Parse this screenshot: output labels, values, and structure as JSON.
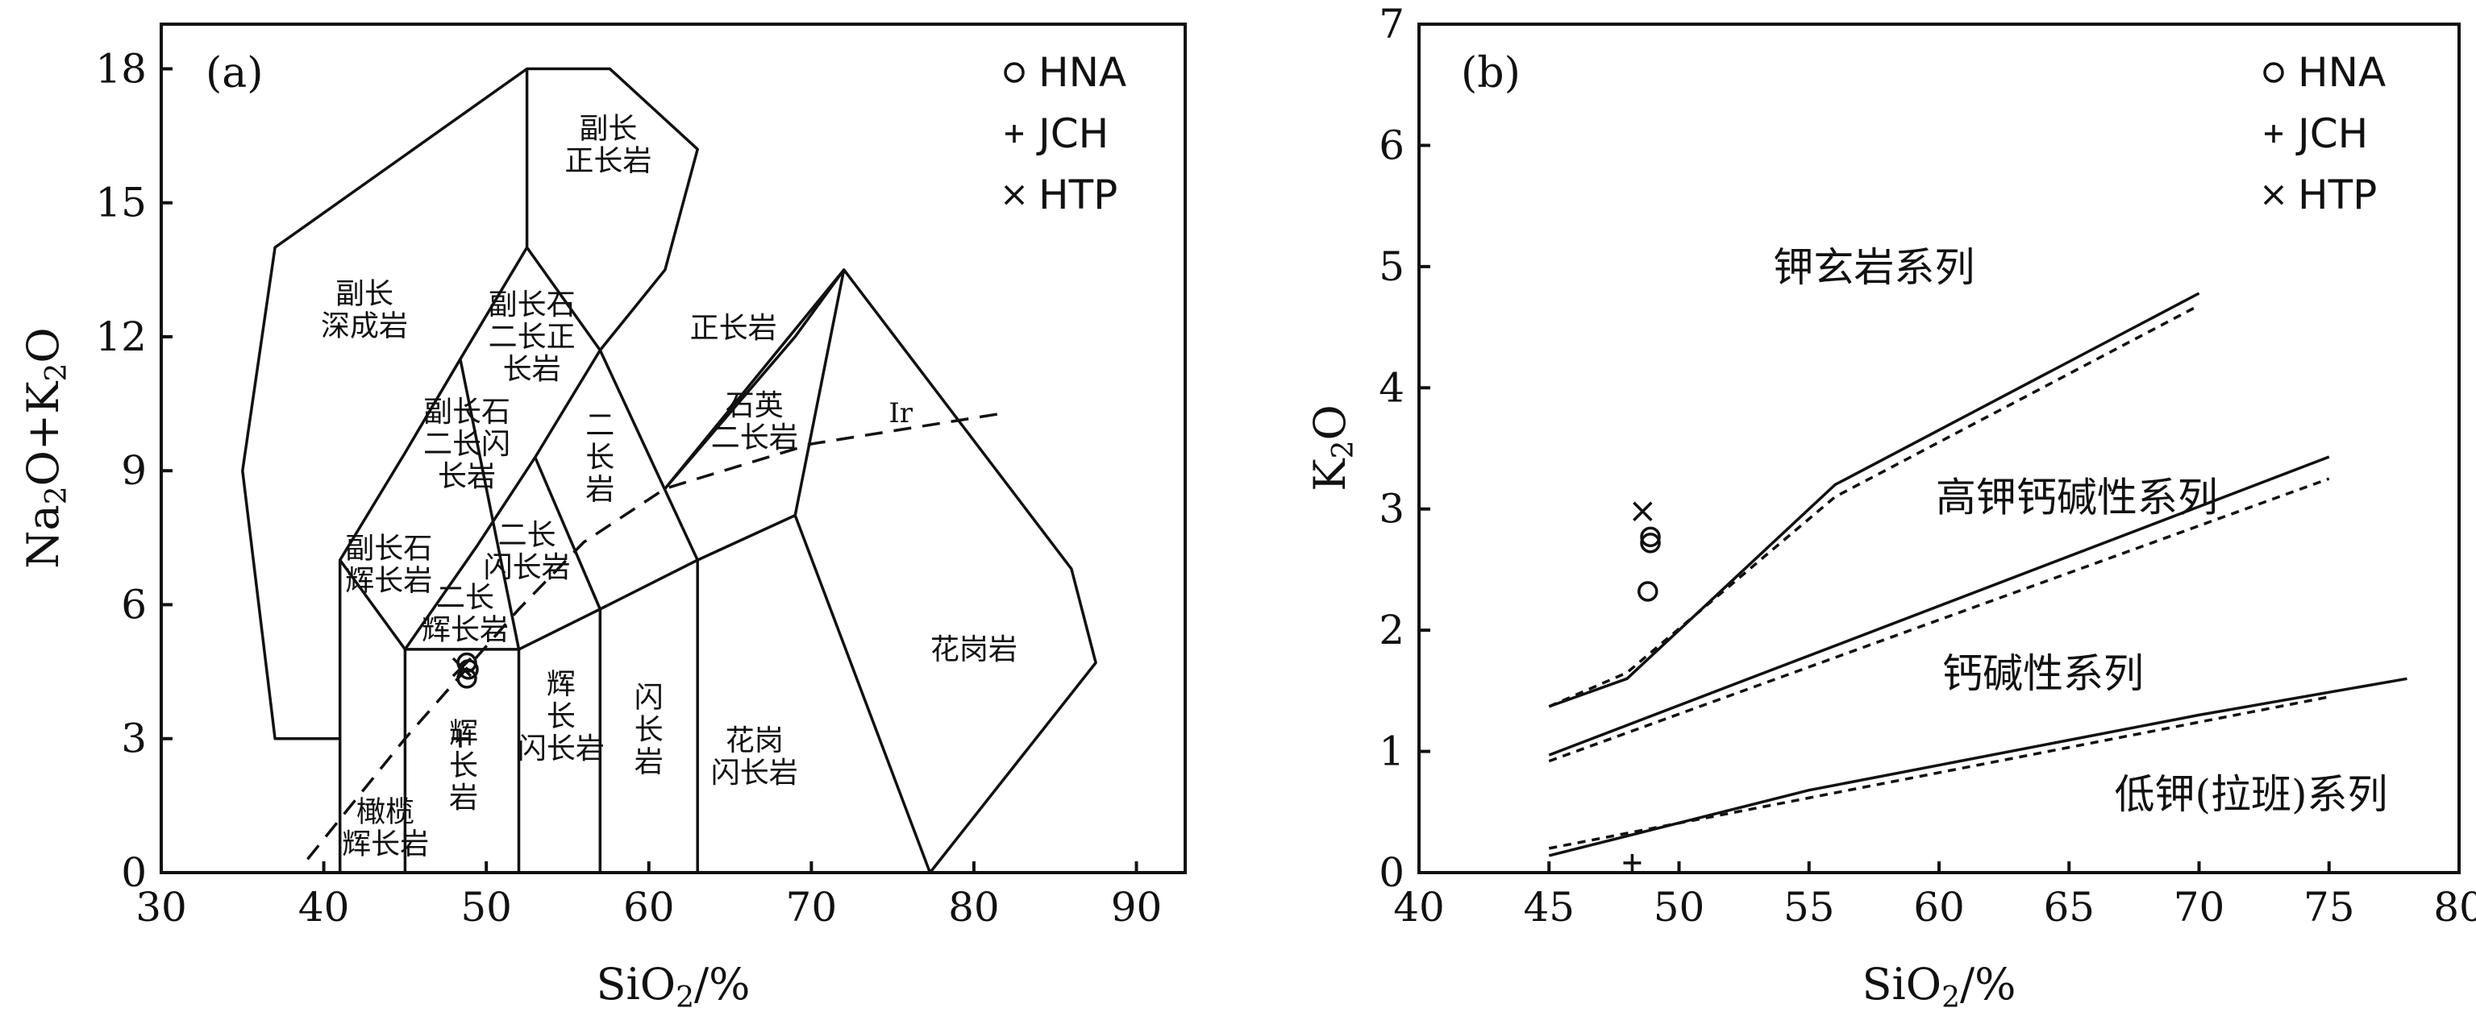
{
  "chart_data": [
    {
      "panel_label": "(a)",
      "type": "scatter",
      "xlabel": "SiO2/%",
      "xlabel_tail": "/%",
      "ylabel": "Na2O+K2O",
      "xlim": [
        30,
        93
      ],
      "ylim": [
        0,
        19
      ],
      "xticks": [
        30,
        40,
        50,
        60,
        70,
        80,
        90
      ],
      "yticks": [
        0,
        3,
        6,
        9,
        12,
        15,
        18
      ],
      "boundaries": [
        [
          [
            41,
            0
          ],
          [
            41,
            7
          ],
          [
            45,
            5
          ],
          [
            52,
            5
          ],
          [
            57,
            5.9
          ],
          [
            63,
            7
          ],
          [
            69,
            8
          ],
          [
            77.3,
            0
          ]
        ],
        [
          [
            45,
            0
          ],
          [
            45,
            5
          ]
        ],
        [
          [
            52,
            0
          ],
          [
            52,
            5
          ]
        ],
        [
          [
            57,
            0
          ],
          [
            57,
            5.9
          ]
        ],
        [
          [
            63,
            0
          ],
          [
            63,
            7
          ]
        ],
        [
          [
            41,
            3
          ],
          [
            37,
            3
          ],
          [
            35,
            9
          ],
          [
            37,
            14
          ],
          [
            52.5,
            18
          ],
          [
            57.6,
            18
          ],
          [
            63,
            16.2
          ],
          [
            61,
            13.5
          ],
          [
            57,
            11.7
          ],
          [
            52.5,
            14
          ],
          [
            52.5,
            18
          ]
        ],
        [
          [
            52.5,
            14
          ],
          [
            48.4,
            11.5
          ],
          [
            45,
            9.4
          ],
          [
            41,
            7
          ]
        ],
        [
          [
            45,
            5
          ],
          [
            49.4,
            7.3
          ],
          [
            53,
            9.3
          ],
          [
            57,
            11.7
          ]
        ],
        [
          [
            48.4,
            11.5
          ],
          [
            52,
            5
          ]
        ],
        [
          [
            53,
            9.3
          ],
          [
            57,
            5.9
          ]
        ],
        [
          [
            57,
            11.7
          ],
          [
            63,
            7
          ]
        ],
        [
          [
            61,
            8.6
          ],
          [
            69,
            12
          ],
          [
            72,
            13.5
          ],
          [
            61,
            8.6
          ]
        ],
        [
          [
            72,
            13.5
          ],
          [
            69,
            8
          ]
        ],
        [
          [
            72,
            13.5
          ],
          [
            86,
            6.8
          ],
          [
            87.5,
            4.7
          ],
          [
            77.3,
            0
          ]
        ]
      ],
      "ir_line": [
        [
          39,
          0.3
        ],
        [
          45,
          3
        ],
        [
          52,
          5.9
        ],
        [
          56,
          7.4
        ],
        [
          61,
          8.6
        ],
        [
          70,
          9.6
        ],
        [
          82,
          10.3
        ]
      ],
      "region_labels": [
        {
          "lines": [
            "副长",
            "正长岩"
          ],
          "x": 57.5,
          "y": 16.3
        },
        {
          "lines": [
            "副长",
            "深成岩"
          ],
          "x": 42.5,
          "y": 12.6
        },
        {
          "lines": [
            "副长石",
            "二长正",
            "长岩"
          ],
          "x": 52.8,
          "y": 12.0
        },
        {
          "lines": [
            "正长岩"
          ],
          "x": 65.2,
          "y": 12.2
        },
        {
          "lines": [
            "副长石",
            "二长闪",
            "长岩"
          ],
          "x": 48.8,
          "y": 9.6
        },
        {
          "lines": [
            "二",
            "长",
            "岩"
          ],
          "x": 57.0,
          "y": 9.3
        },
        {
          "lines": [
            "石英",
            "二长岩"
          ],
          "x": 66.5,
          "y": 10.1
        },
        {
          "lines": [
            "Ir"
          ],
          "x": 75.5,
          "y": 10.3
        },
        {
          "lines": [
            "二长",
            "闪长岩"
          ],
          "x": 52.5,
          "y": 7.2
        },
        {
          "lines": [
            "副长石",
            "辉长岩"
          ],
          "x": 44.0,
          "y": 6.9
        },
        {
          "lines": [
            "二长",
            "辉长岩"
          ],
          "x": 48.7,
          "y": 5.8
        },
        {
          "lines": [
            "辉",
            "长",
            "岩"
          ],
          "x": 48.6,
          "y": 2.4
        },
        {
          "lines": [
            "辉",
            "长",
            "闪长岩"
          ],
          "x": 54.6,
          "y": 3.5
        },
        {
          "lines": [
            "闪",
            "长",
            "岩"
          ],
          "x": 60.0,
          "y": 3.2
        },
        {
          "lines": [
            "花岗",
            "闪长岩"
          ],
          "x": 66.5,
          "y": 2.6
        },
        {
          "lines": [
            "花岗岩"
          ],
          "x": 80.0,
          "y": 5.0
        },
        {
          "lines": [
            "橄榄",
            "辉长岩"
          ],
          "x": 43.8,
          "y": 1.0
        }
      ],
      "series": [
        {
          "name": "HNA",
          "marker": "circle",
          "points": [
            [
              48.8,
              4.7
            ],
            [
              48.9,
              4.55
            ],
            [
              48.8,
              4.35
            ]
          ]
        },
        {
          "name": "JCH",
          "marker": "plus",
          "points": [
            [
              48.4,
              3.0
            ]
          ]
        },
        {
          "name": "HTP",
          "marker": "x",
          "points": [
            [
              48.5,
              4.6
            ]
          ]
        }
      ]
    },
    {
      "panel_label": "(b)",
      "type": "scatter",
      "xlabel": "SiO2/%",
      "xlabel_tail": "/%",
      "ylabel": "K2O",
      "xlim": [
        40,
        80
      ],
      "ylim": [
        0,
        7
      ],
      "xticks": [
        40,
        45,
        50,
        55,
        60,
        65,
        70,
        75,
        80
      ],
      "yticks": [
        0,
        1,
        2,
        3,
        4,
        5,
        6,
        7
      ],
      "solid_lines": [
        [
          [
            45,
            1.37
          ],
          [
            48,
            1.6
          ],
          [
            56,
            3.2
          ],
          [
            70,
            4.78
          ]
        ],
        [
          [
            45,
            0.97
          ],
          [
            75,
            3.43
          ]
        ],
        [
          [
            45,
            0.14
          ],
          [
            55,
            0.68
          ],
          [
            70,
            1.3
          ],
          [
            78,
            1.6
          ]
        ]
      ],
      "dashed_lines": [
        [
          [
            45,
            1.37
          ],
          [
            48,
            1.65
          ],
          [
            56,
            3.1
          ],
          [
            70,
            4.68
          ]
        ],
        [
          [
            45,
            0.92
          ],
          [
            75,
            3.25
          ]
        ],
        [
          [
            45,
            0.2
          ],
          [
            75,
            1.45
          ]
        ]
      ],
      "field_labels": [
        {
          "text": "钾玄岩系列",
          "x": 57.5,
          "y": 5.0
        },
        {
          "text": "高钾钙碱性系列",
          "x": 65.3,
          "y": 3.1
        },
        {
          "text": "钙碱性系列",
          "x": 64.0,
          "y": 1.65
        },
        {
          "text": "低钾(拉班)系列",
          "x": 72.0,
          "y": 0.65
        }
      ],
      "series": [
        {
          "name": "HNA",
          "marker": "circle",
          "points": [
            [
              48.9,
              2.77
            ],
            [
              48.9,
              2.72
            ],
            [
              48.8,
              2.32
            ]
          ]
        },
        {
          "name": "JCH",
          "marker": "plus",
          "points": [
            [
              48.2,
              0.08
            ]
          ]
        },
        {
          "name": "HTP",
          "marker": "x",
          "points": [
            [
              48.6,
              2.98
            ]
          ]
        }
      ]
    }
  ]
}
